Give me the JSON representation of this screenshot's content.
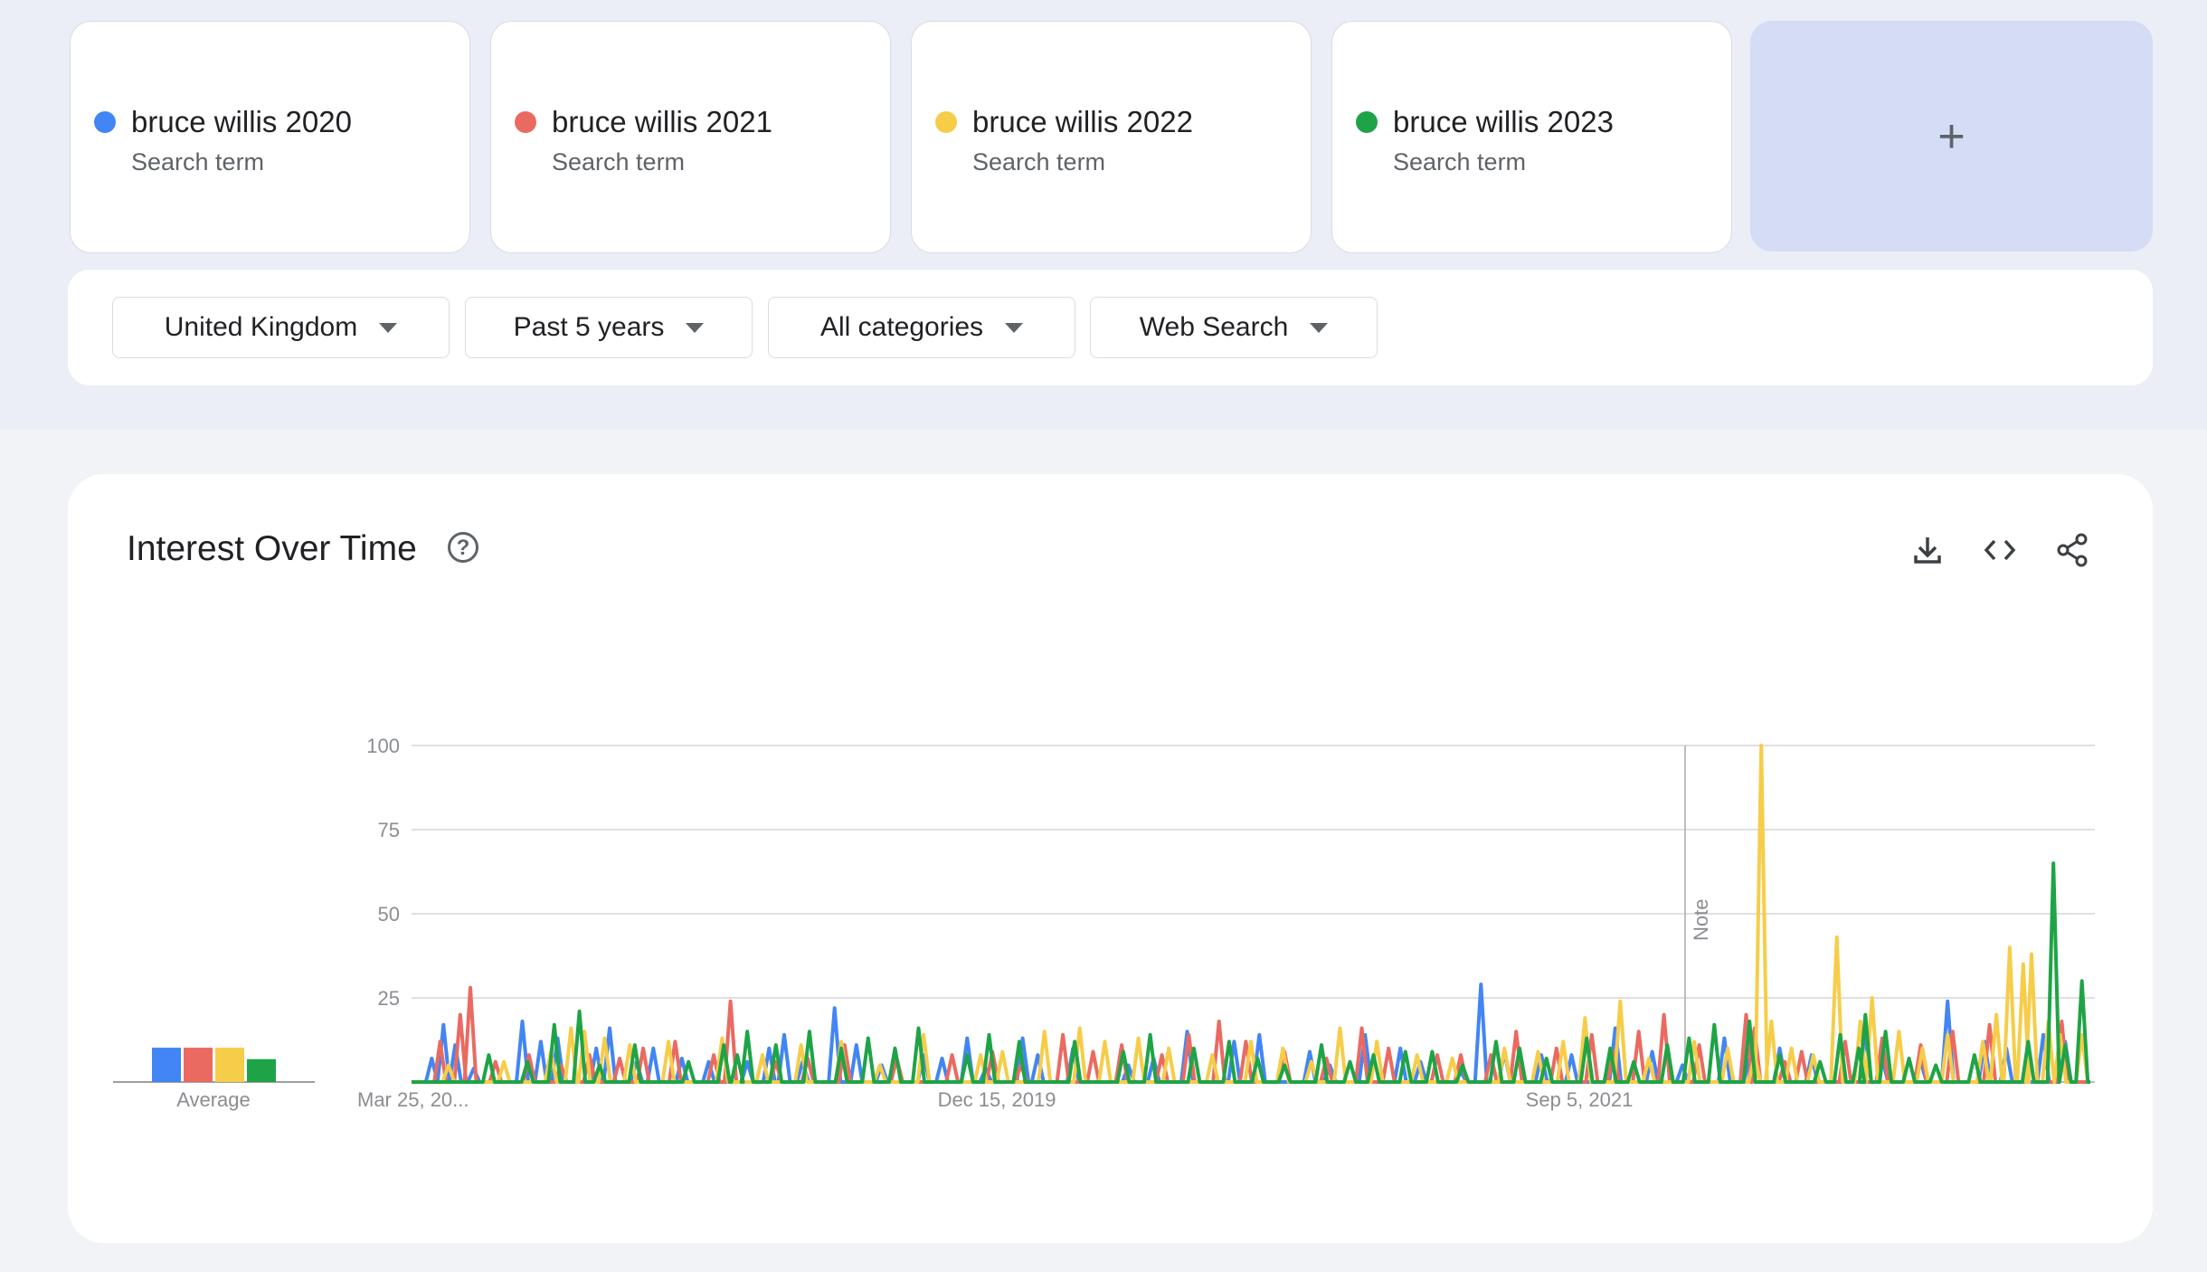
{
  "terms": [
    {
      "name": "bruce willis 2020",
      "sub": "Search term",
      "color": "#4285f4"
    },
    {
      "name": "bruce willis 2021",
      "sub": "Search term",
      "color": "#ea6a61"
    },
    {
      "name": "bruce willis 2022",
      "sub": "Search term",
      "color": "#f6cd49"
    },
    {
      "name": "bruce willis 2023",
      "sub": "Search term",
      "color": "#1ea446"
    }
  ],
  "add_label": "+",
  "filters": {
    "region": "United Kingdom",
    "period": "Past 5 years",
    "category": "All categories",
    "search_type": "Web Search"
  },
  "chart": {
    "title": "Interest Over Time",
    "note_label": "Note",
    "average_label": "Average",
    "x_ticks": [
      "Mar 25, 20...",
      "Dec 15, 2019",
      "Sep 5, 2021"
    ],
    "y_ticks": [
      "100",
      "75",
      "50",
      "25"
    ]
  },
  "chart_data": {
    "type": "line",
    "ylim": [
      0,
      100
    ],
    "x": [
      "start",
      "Dec 15, 2019",
      "Sep 5, 2021",
      "end"
    ],
    "averages": [
      3,
      3,
      3,
      2
    ],
    "series": [
      {
        "name": "bruce willis 2020",
        "color": "#4285f4",
        "peaks": [
          [
            0.012,
            7
          ],
          [
            0.019,
            17
          ],
          [
            0.026,
            11
          ],
          [
            0.037,
            4
          ],
          [
            0.066,
            18
          ],
          [
            0.077,
            12
          ],
          [
            0.087,
            13
          ],
          [
            0.11,
            10
          ],
          [
            0.118,
            16
          ],
          [
            0.134,
            6
          ],
          [
            0.144,
            10
          ],
          [
            0.161,
            7
          ],
          [
            0.177,
            6
          ],
          [
            0.2,
            6
          ],
          [
            0.213,
            10
          ],
          [
            0.222,
            14
          ],
          [
            0.233,
            6
          ],
          [
            0.252,
            22
          ],
          [
            0.265,
            11
          ],
          [
            0.28,
            5
          ],
          [
            0.305,
            8
          ],
          [
            0.316,
            7
          ],
          [
            0.331,
            13
          ],
          [
            0.342,
            4
          ],
          [
            0.364,
            13
          ],
          [
            0.373,
            8
          ],
          [
            0.394,
            10
          ],
          [
            0.427,
            5
          ],
          [
            0.442,
            7
          ],
          [
            0.462,
            15
          ],
          [
            0.49,
            12
          ],
          [
            0.505,
            14
          ],
          [
            0.535,
            9
          ],
          [
            0.547,
            5
          ],
          [
            0.568,
            14
          ],
          [
            0.589,
            10
          ],
          [
            0.601,
            6
          ],
          [
            0.625,
            3
          ],
          [
            0.637,
            29
          ],
          [
            0.651,
            9
          ],
          [
            0.673,
            8
          ],
          [
            0.691,
            8
          ],
          [
            0.717,
            16
          ],
          [
            0.739,
            9
          ],
          [
            0.757,
            5
          ],
          [
            0.782,
            13
          ],
          [
            0.797,
            7
          ],
          [
            0.815,
            10
          ],
          [
            0.834,
            8
          ],
          [
            0.866,
            14
          ],
          [
            0.876,
            7
          ],
          [
            0.899,
            6
          ],
          [
            0.915,
            24
          ],
          [
            0.937,
            12
          ],
          [
            0.95,
            10
          ],
          [
            0.972,
            14
          ],
          [
            0.985,
            12
          ]
        ]
      },
      {
        "name": "bruce willis 2021",
        "color": "#ea6a61",
        "peaks": [
          [
            0.017,
            12
          ],
          [
            0.029,
            20
          ],
          [
            0.035,
            28
          ],
          [
            0.05,
            6
          ],
          [
            0.07,
            8
          ],
          [
            0.089,
            5
          ],
          [
            0.106,
            8
          ],
          [
            0.124,
            7
          ],
          [
            0.138,
            10
          ],
          [
            0.157,
            12
          ],
          [
            0.18,
            8
          ],
          [
            0.19,
            24
          ],
          [
            0.217,
            6
          ],
          [
            0.236,
            7
          ],
          [
            0.258,
            11
          ],
          [
            0.289,
            7
          ],
          [
            0.322,
            8
          ],
          [
            0.346,
            9
          ],
          [
            0.363,
            5
          ],
          [
            0.388,
            14
          ],
          [
            0.406,
            9
          ],
          [
            0.423,
            11
          ],
          [
            0.447,
            8
          ],
          [
            0.463,
            14
          ],
          [
            0.481,
            18
          ],
          [
            0.497,
            12
          ],
          [
            0.52,
            9
          ],
          [
            0.545,
            7
          ],
          [
            0.566,
            16
          ],
          [
            0.582,
            10
          ],
          [
            0.611,
            8
          ],
          [
            0.625,
            8
          ],
          [
            0.643,
            8
          ],
          [
            0.658,
            15
          ],
          [
            0.682,
            10
          ],
          [
            0.703,
            14
          ],
          [
            0.716,
            9
          ],
          [
            0.731,
            15
          ],
          [
            0.746,
            20
          ],
          [
            0.767,
            11
          ],
          [
            0.795,
            20
          ],
          [
            0.8,
            16
          ],
          [
            0.818,
            6
          ],
          [
            0.828,
            9
          ],
          [
            0.854,
            12
          ],
          [
            0.876,
            13
          ],
          [
            0.899,
            11
          ],
          [
            0.918,
            15
          ],
          [
            0.94,
            17
          ],
          [
            0.963,
            11
          ],
          [
            0.983,
            18
          ]
        ]
      },
      {
        "name": "bruce willis 2022",
        "color": "#f6cd49",
        "peaks": [
          [
            0.022,
            5
          ],
          [
            0.055,
            6
          ],
          [
            0.083,
            9
          ],
          [
            0.095,
            16
          ],
          [
            0.103,
            15
          ],
          [
            0.115,
            13
          ],
          [
            0.13,
            11
          ],
          [
            0.153,
            12
          ],
          [
            0.185,
            13
          ],
          [
            0.209,
            8
          ],
          [
            0.232,
            11
          ],
          [
            0.256,
            12
          ],
          [
            0.279,
            5
          ],
          [
            0.305,
            14
          ],
          [
            0.339,
            8
          ],
          [
            0.352,
            9
          ],
          [
            0.377,
            15
          ],
          [
            0.398,
            16
          ],
          [
            0.413,
            12
          ],
          [
            0.433,
            13
          ],
          [
            0.451,
            10
          ],
          [
            0.477,
            8
          ],
          [
            0.5,
            12
          ],
          [
            0.519,
            10
          ],
          [
            0.536,
            6
          ],
          [
            0.553,
            16
          ],
          [
            0.575,
            12
          ],
          [
            0.599,
            8
          ],
          [
            0.62,
            7
          ],
          [
            0.651,
            10
          ],
          [
            0.671,
            9
          ],
          [
            0.686,
            12
          ],
          [
            0.699,
            19
          ],
          [
            0.72,
            24
          ],
          [
            0.737,
            7
          ],
          [
            0.764,
            12
          ],
          [
            0.784,
            10
          ],
          [
            0.8,
            8
          ],
          [
            0.804,
            100
          ],
          [
            0.81,
            18
          ],
          [
            0.822,
            10
          ],
          [
            0.835,
            8
          ],
          [
            0.849,
            43
          ],
          [
            0.863,
            18
          ],
          [
            0.87,
            25
          ],
          [
            0.886,
            15
          ],
          [
            0.9,
            10
          ],
          [
            0.915,
            14
          ],
          [
            0.936,
            12
          ],
          [
            0.944,
            20
          ],
          [
            0.952,
            40
          ],
          [
            0.96,
            35
          ],
          [
            0.965,
            38
          ],
          [
            0.975,
            18
          ],
          [
            0.982,
            14
          ],
          [
            0.995,
            14
          ]
        ]
      },
      {
        "name": "bruce willis 2023",
        "color": "#1ea446",
        "peaks": [
          [
            0.046,
            8
          ],
          [
            0.069,
            6
          ],
          [
            0.085,
            17
          ],
          [
            0.1,
            21
          ],
          [
            0.112,
            5
          ],
          [
            0.133,
            11
          ],
          [
            0.165,
            6
          ],
          [
            0.186,
            11
          ],
          [
            0.194,
            8
          ],
          [
            0.2,
            15
          ],
          [
            0.217,
            11
          ],
          [
            0.237,
            15
          ],
          [
            0.256,
            10
          ],
          [
            0.272,
            13
          ],
          [
            0.288,
            10
          ],
          [
            0.302,
            16
          ],
          [
            0.331,
            8
          ],
          [
            0.344,
            14
          ],
          [
            0.362,
            12
          ],
          [
            0.395,
            12
          ],
          [
            0.424,
            9
          ],
          [
            0.44,
            14
          ],
          [
            0.466,
            10
          ],
          [
            0.487,
            12
          ],
          [
            0.504,
            7
          ],
          [
            0.52,
            5
          ],
          [
            0.542,
            11
          ],
          [
            0.559,
            6
          ],
          [
            0.573,
            8
          ],
          [
            0.592,
            9
          ],
          [
            0.608,
            9
          ],
          [
            0.626,
            5
          ],
          [
            0.646,
            12
          ],
          [
            0.66,
            10
          ],
          [
            0.676,
            7
          ],
          [
            0.7,
            13
          ],
          [
            0.714,
            10
          ],
          [
            0.728,
            6
          ],
          [
            0.748,
            11
          ],
          [
            0.761,
            13
          ],
          [
            0.776,
            17
          ],
          [
            0.797,
            18
          ],
          [
            0.815,
            8
          ],
          [
            0.839,
            6
          ],
          [
            0.851,
            14
          ],
          [
            0.862,
            10
          ],
          [
            0.866,
            20
          ],
          [
            0.878,
            15
          ],
          [
            0.892,
            7
          ],
          [
            0.908,
            5
          ],
          [
            0.931,
            8
          ],
          [
            0.963,
            12
          ],
          [
            0.978,
            65
          ],
          [
            0.985,
            11
          ],
          [
            0.995,
            30
          ]
        ]
      }
    ]
  }
}
